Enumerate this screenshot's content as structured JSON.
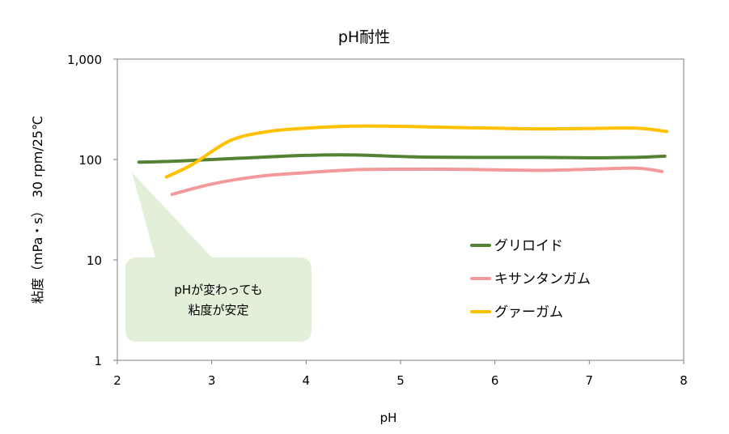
{
  "chart_data": {
    "type": "line",
    "title": "pH耐性",
    "xlabel": "pH",
    "ylabel": "粘度（mPa・s）　30 rpm/25℃",
    "xlim": [
      2,
      8
    ],
    "ylim": [
      1,
      1000
    ],
    "yscale": "log",
    "x_ticks": [
      "2",
      "3",
      "4",
      "5",
      "6",
      "7",
      "8"
    ],
    "y_ticks": [
      {
        "value": 1,
        "label": "1"
      },
      {
        "value": 10,
        "label": "10"
      },
      {
        "value": 100,
        "label": "100"
      },
      {
        "value": 1000,
        "label": "1,000"
      }
    ],
    "grid": false,
    "legend_position": "lower-right",
    "series": [
      {
        "name": "グリロイド",
        "color": "#548235",
        "points": [
          [
            2.23,
            94
          ],
          [
            2.7,
            97
          ],
          [
            3.3,
            103
          ],
          [
            4.0,
            110
          ],
          [
            4.5,
            111
          ],
          [
            5.2,
            106
          ],
          [
            6.0,
            105
          ],
          [
            6.5,
            105
          ],
          [
            7.0,
            104
          ],
          [
            7.5,
            105
          ],
          [
            7.8,
            108
          ]
        ]
      },
      {
        "name": "キサンタンガム",
        "color": "#f4999b",
        "points": [
          [
            2.58,
            45
          ],
          [
            3.0,
            57
          ],
          [
            3.5,
            68
          ],
          [
            4.0,
            74
          ],
          [
            4.5,
            79
          ],
          [
            5.0,
            80
          ],
          [
            5.5,
            80
          ],
          [
            6.0,
            79
          ],
          [
            6.5,
            78
          ],
          [
            7.0,
            80
          ],
          [
            7.5,
            82
          ],
          [
            7.77,
            76
          ]
        ]
      },
      {
        "name": "グァーガム",
        "color": "#ffc000",
        "points": [
          [
            2.52,
            67
          ],
          [
            2.8,
            90
          ],
          [
            3.2,
            155
          ],
          [
            3.6,
            190
          ],
          [
            4.0,
            205
          ],
          [
            4.5,
            215
          ],
          [
            5.0,
            214
          ],
          [
            5.5,
            209
          ],
          [
            6.0,
            205
          ],
          [
            6.5,
            202
          ],
          [
            7.0,
            204
          ],
          [
            7.5,
            205
          ],
          [
            7.82,
            190
          ]
        ]
      }
    ],
    "annotation": {
      "lines": [
        "pHが変わっても",
        "粘度が安定"
      ],
      "fill": "#e2efd9"
    }
  }
}
